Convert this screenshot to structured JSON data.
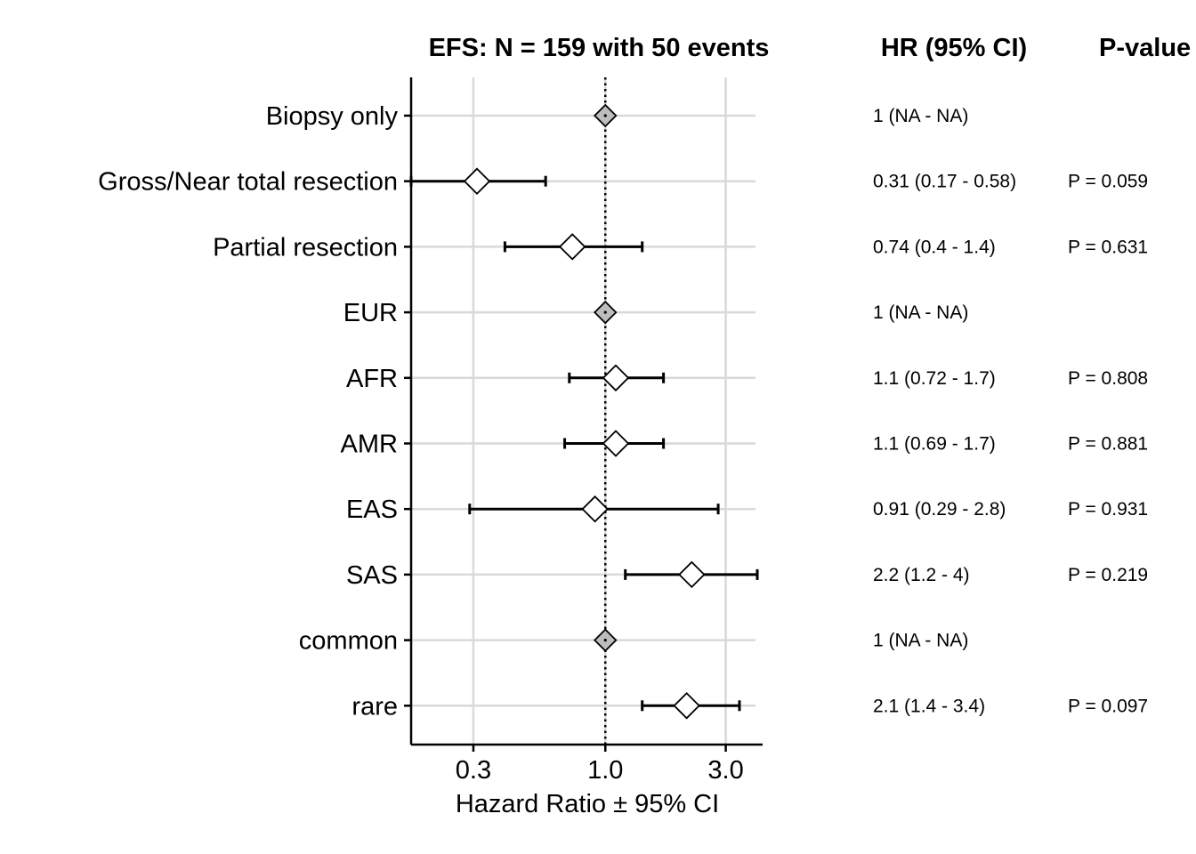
{
  "chart_data": {
    "type": "forest",
    "title": "EFS: N = 159 with 50 events",
    "hr_header": "HR (95% CI)",
    "p_header": "P-value",
    "xlabel": "Hazard Ratio ± 95% CI",
    "x_scale": "log",
    "xlim": [
      0.17,
      4.2
    ],
    "x_ticks": [
      0.3,
      1.0,
      3.0
    ],
    "x_tick_labels": [
      "0.3",
      "1.0",
      "3.0"
    ],
    "reference_line": 1.0,
    "grid": true,
    "rows": [
      {
        "label": "Biopsy only",
        "hr": 1.0,
        "lower": null,
        "upper": null,
        "reference": true,
        "hr_text": "1 (NA - NA)",
        "p_text": ""
      },
      {
        "label": "Gross/Near total resection",
        "hr": 0.31,
        "lower": 0.17,
        "upper": 0.58,
        "reference": false,
        "hr_text": "0.31 (0.17 - 0.58)",
        "p_text": "P = 0.059"
      },
      {
        "label": "Partial resection",
        "hr": 0.74,
        "lower": 0.4,
        "upper": 1.4,
        "reference": false,
        "hr_text": "0.74 (0.4 - 1.4)",
        "p_text": "P = 0.631"
      },
      {
        "label": "EUR",
        "hr": 1.0,
        "lower": null,
        "upper": null,
        "reference": true,
        "hr_text": "1 (NA - NA)",
        "p_text": ""
      },
      {
        "label": "AFR",
        "hr": 1.1,
        "lower": 0.72,
        "upper": 1.7,
        "reference": false,
        "hr_text": "1.1 (0.72 - 1.7)",
        "p_text": "P = 0.808"
      },
      {
        "label": "AMR",
        "hr": 1.1,
        "lower": 0.69,
        "upper": 1.7,
        "reference": false,
        "hr_text": "1.1 (0.69 - 1.7)",
        "p_text": "P = 0.881"
      },
      {
        "label": "EAS",
        "hr": 0.91,
        "lower": 0.29,
        "upper": 2.8,
        "reference": false,
        "hr_text": "0.91 (0.29 - 2.8)",
        "p_text": "P = 0.931"
      },
      {
        "label": "SAS",
        "hr": 2.2,
        "lower": 1.2,
        "upper": 4.0,
        "reference": false,
        "hr_text": "2.2 (1.2 - 4)",
        "p_text": "P = 0.219"
      },
      {
        "label": "common",
        "hr": 1.0,
        "lower": null,
        "upper": null,
        "reference": true,
        "hr_text": "1 (NA - NA)",
        "p_text": ""
      },
      {
        "label": "rare",
        "hr": 2.1,
        "lower": 1.4,
        "upper": 3.4,
        "reference": false,
        "hr_text": "2.1 (1.4 - 3.4)",
        "p_text": "P = 0.097"
      }
    ],
    "colors": {
      "reference_marker": "#bdbdbd",
      "marker": "#ffffff",
      "stroke": "#000000",
      "grid": "#d9d9d9"
    }
  }
}
